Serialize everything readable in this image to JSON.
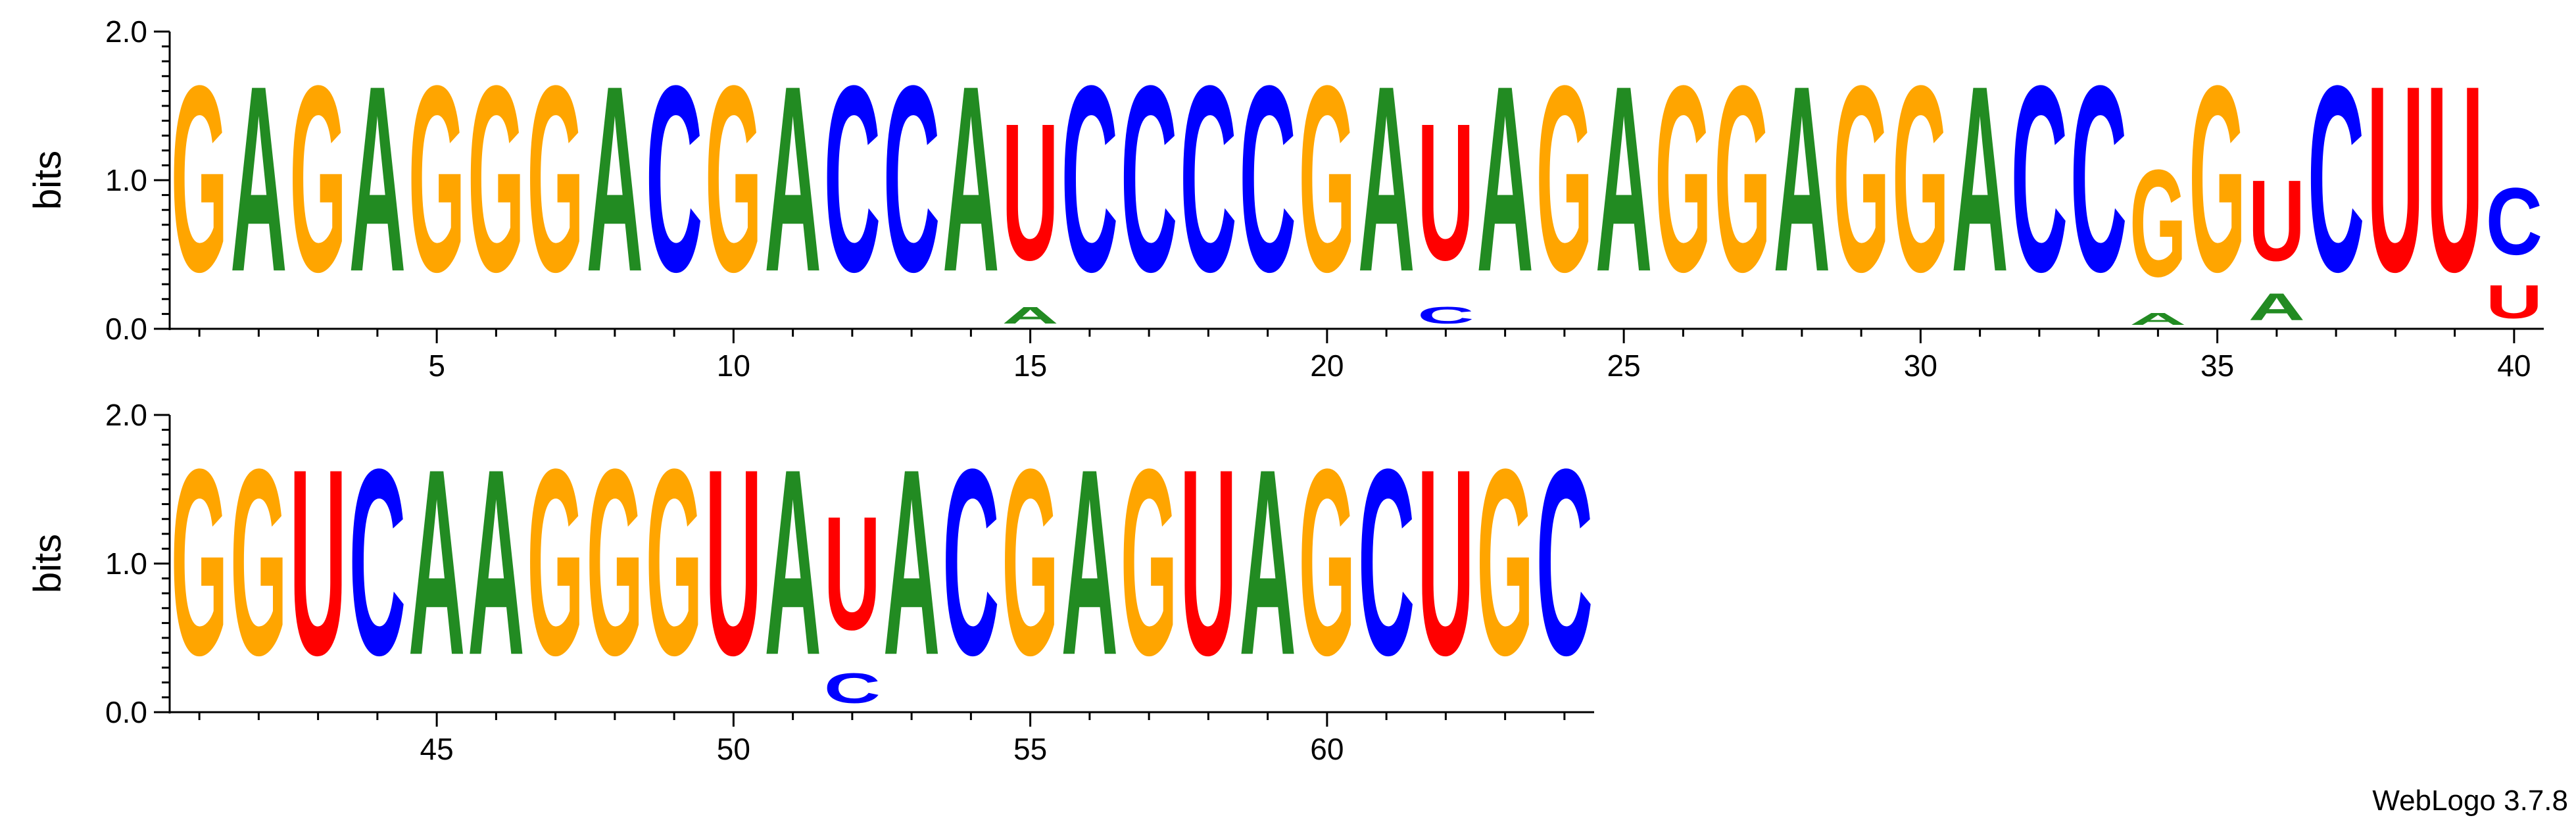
{
  "chart_data": {
    "type": "sequence-logo",
    "ylabel": "bits",
    "ylim": [
      0,
      2.0
    ],
    "yticks": [
      "0.0",
      "1.0",
      "2.0"
    ],
    "credit": "WebLogo 3.7.8",
    "colors": {
      "G": "#FFA500",
      "A": "#228B22",
      "C": "#0000FF",
      "U": "#FF0000"
    },
    "rows": [
      {
        "first_pos": 1,
        "last_pos": 40,
        "x_tick_labels": [
          "5",
          "10",
          "15",
          "20",
          "25",
          "30",
          "35",
          "40"
        ],
        "columns": [
          [
            [
              "G",
              2.0
            ]
          ],
          [
            [
              "A",
              2.0
            ]
          ],
          [
            [
              "G",
              2.0
            ]
          ],
          [
            [
              "A",
              2.0
            ]
          ],
          [
            [
              "G",
              2.0
            ]
          ],
          [
            [
              "G",
              2.0
            ]
          ],
          [
            [
              "G",
              2.0
            ]
          ],
          [
            [
              "A",
              2.0
            ]
          ],
          [
            [
              "C",
              2.0
            ]
          ],
          [
            [
              "G",
              2.0
            ]
          ],
          [
            [
              "A",
              2.0
            ]
          ],
          [
            [
              "C",
              2.0
            ]
          ],
          [
            [
              "C",
              2.0
            ]
          ],
          [
            [
              "A",
              2.0
            ]
          ],
          [
            [
              "A",
              0.18
            ],
            [
              "U",
              1.47
            ]
          ],
          [
            [
              "C",
              2.0
            ]
          ],
          [
            [
              "C",
              2.0
            ]
          ],
          [
            [
              "C",
              2.0
            ]
          ],
          [
            [
              "C",
              2.0
            ]
          ],
          [
            [
              "G",
              2.0
            ]
          ],
          [
            [
              "A",
              2.0
            ]
          ],
          [
            [
              "C",
              0.18
            ],
            [
              "U",
              1.47
            ]
          ],
          [
            [
              "A",
              2.0
            ]
          ],
          [
            [
              "G",
              2.0
            ]
          ],
          [
            [
              "A",
              2.0
            ]
          ],
          [
            [
              "G",
              2.0
            ]
          ],
          [
            [
              "G",
              2.0
            ]
          ],
          [
            [
              "A",
              2.0
            ]
          ],
          [
            [
              "G",
              2.0
            ]
          ],
          [
            [
              "G",
              2.0
            ]
          ],
          [
            [
              "A",
              2.0
            ]
          ],
          [
            [
              "C",
              2.0
            ]
          ],
          [
            [
              "C",
              2.0
            ]
          ],
          [
            [
              "A",
              0.13
            ],
            [
              "G",
              1.15
            ]
          ],
          [
            [
              "G",
              2.0
            ]
          ],
          [
            [
              "A",
              0.29
            ],
            [
              "U",
              0.87
            ]
          ],
          [
            [
              "C",
              2.0
            ]
          ],
          [
            [
              "U",
              2.0
            ]
          ],
          [
            [
              "U",
              2.0
            ]
          ],
          [
            [
              "U",
              0.36
            ],
            [
              "C",
              0.72
            ]
          ]
        ]
      },
      {
        "first_pos": 41,
        "last_pos": 64,
        "x_tick_labels": [
          "45",
          "50",
          "55",
          "60"
        ],
        "columns": [
          [
            [
              "G",
              2.0
            ]
          ],
          [
            [
              "G",
              2.0
            ]
          ],
          [
            [
              "U",
              2.0
            ]
          ],
          [
            [
              "C",
              2.0
            ]
          ],
          [
            [
              "A",
              2.0
            ]
          ],
          [
            [
              "A",
              2.0
            ]
          ],
          [
            [
              "G",
              2.0
            ]
          ],
          [
            [
              "G",
              2.0
            ]
          ],
          [
            [
              "G",
              2.0
            ]
          ],
          [
            [
              "U",
              2.0
            ]
          ],
          [
            [
              "A",
              2.0
            ]
          ],
          [
            [
              "C",
              0.32
            ],
            [
              "U",
              1.22
            ]
          ],
          [
            [
              "A",
              2.0
            ]
          ],
          [
            [
              "C",
              2.0
            ]
          ],
          [
            [
              "G",
              2.0
            ]
          ],
          [
            [
              "A",
              2.0
            ]
          ],
          [
            [
              "G",
              2.0
            ]
          ],
          [
            [
              "U",
              2.0
            ]
          ],
          [
            [
              "A",
              2.0
            ]
          ],
          [
            [
              "G",
              2.0
            ]
          ],
          [
            [
              "C",
              2.0
            ]
          ],
          [
            [
              "U",
              2.0
            ]
          ],
          [
            [
              "G",
              2.0
            ]
          ],
          [
            [
              "C",
              2.0
            ]
          ]
        ]
      }
    ]
  }
}
